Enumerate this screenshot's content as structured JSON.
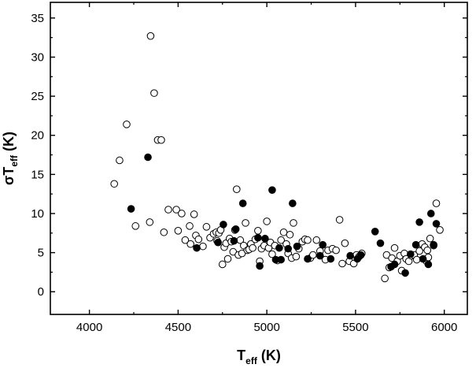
{
  "chart_data": {
    "type": "scatter",
    "xlabel": {
      "main": "T",
      "sub": "eff",
      "unit": " (K)"
    },
    "ylabel": {
      "prefix": "σT",
      "sub": "eff",
      "unit": " (K)"
    },
    "xlim": [
      3780,
      6130
    ],
    "ylim": [
      -2.9,
      37.0
    ],
    "xticks": [
      4000,
      4500,
      5000,
      5500,
      6000
    ],
    "yticks": [
      0,
      5,
      10,
      15,
      20,
      25,
      30,
      35
    ],
    "grid": false,
    "legend": "none",
    "colors": {
      "filled": "#000000",
      "open_fill": "#ffffff",
      "stroke": "#000000"
    },
    "series": [
      {
        "marker": "open-circle",
        "x": [
          4140,
          4170,
          4210,
          4260,
          4345,
          4365,
          4385,
          4405,
          4340,
          4420,
          4445,
          4490,
          4500,
          4520,
          4540,
          4565,
          4570,
          4590,
          4600,
          4615,
          4640,
          4660,
          4680,
          4700,
          4715,
          4720,
          4730,
          4740,
          4750,
          4760,
          4770,
          4780,
          4790,
          4800,
          4810,
          4820,
          4830,
          4840,
          4850,
          4860,
          4870,
          4880,
          4890,
          4900,
          4910,
          4920,
          4935,
          4950,
          4960,
          4970,
          4985,
          5000,
          5010,
          5020,
          5030,
          5045,
          5060,
          5080,
          5095,
          5110,
          5120,
          5130,
          5140,
          5150,
          5165,
          5180,
          5200,
          5215,
          5230,
          5245,
          5260,
          5280,
          5300,
          5330,
          5345,
          5370,
          5390,
          5410,
          5425,
          5440,
          5465,
          5490,
          5505,
          5520,
          5535,
          5665,
          5675,
          5690,
          5705,
          5720,
          5735,
          5750,
          5760,
          5775,
          5785,
          5800,
          5815,
          5830,
          5845,
          5860,
          5875,
          5890,
          5905,
          5920,
          5940,
          5955,
          5975,
          5900,
          5910
        ],
        "y": [
          13.8,
          16.8,
          21.4,
          8.4,
          32.7,
          25.4,
          19.4,
          19.4,
          8.9,
          7.6,
          10.5,
          10.5,
          7.8,
          10.0,
          6.6,
          8.4,
          6.1,
          9.9,
          7.2,
          6.7,
          5.8,
          8.3,
          6.9,
          7.4,
          7.6,
          6.5,
          7.5,
          7.9,
          3.5,
          5.7,
          6.2,
          4.2,
          6.8,
          6.4,
          5.1,
          7.9,
          13.1,
          4.7,
          6.6,
          4.9,
          5.9,
          8.8,
          5.3,
          5.4,
          6.1,
          5.6,
          6.7,
          7.8,
          3.9,
          5.5,
          5.9,
          9.0,
          5.6,
          6.3,
          4.8,
          5.9,
          4.0,
          6.6,
          7.6,
          6.1,
          4.9,
          7.3,
          4.3,
          8.8,
          4.5,
          5.5,
          6.4,
          6.7,
          6.6,
          4.3,
          4.7,
          6.6,
          5.2,
          4.1,
          5.3,
          5.5,
          5.3,
          9.2,
          3.6,
          6.2,
          3.9,
          3.6,
          4.7,
          4.5,
          4.9,
          1.7,
          4.7,
          3.1,
          4.3,
          5.6,
          3.9,
          4.6,
          2.7,
          4.9,
          4.2,
          3.9,
          4.6,
          4.7,
          4.1,
          5.2,
          6.1,
          5.7,
          5.3,
          6.8,
          5.9,
          11.3,
          7.9,
          3.9,
          4.4
        ]
      },
      {
        "marker": "filled-circle",
        "x": [
          4235,
          4330,
          4605,
          4725,
          4755,
          4815,
          4825,
          4865,
          4950,
          4960,
          4990,
          5030,
          5050,
          5070,
          5080,
          5120,
          5145,
          5170,
          5230,
          5300,
          5315,
          5360,
          5470,
          5510,
          5530,
          5610,
          5640,
          5700,
          5720,
          5780,
          5810,
          5840,
          5860,
          5880,
          5910,
          5925,
          5940,
          5955
        ],
        "y": [
          10.6,
          17.2,
          5.6,
          6.3,
          8.6,
          6.5,
          8.0,
          11.3,
          6.9,
          3.3,
          6.8,
          13.0,
          4.1,
          5.6,
          4.1,
          5.5,
          11.3,
          5.8,
          4.2,
          4.6,
          6.0,
          4.2,
          4.6,
          4.2,
          4.7,
          7.7,
          6.2,
          3.2,
          3.5,
          2.4,
          4.8,
          6.0,
          8.9,
          4.2,
          3.5,
          10.0,
          6.0,
          8.7
        ]
      }
    ]
  }
}
